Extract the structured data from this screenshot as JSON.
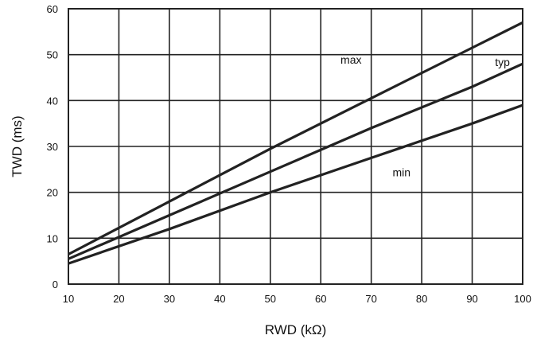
{
  "chart_data": {
    "type": "line",
    "xlabel": "RWD (kΩ)",
    "ylabel": "TWD (ms)",
    "xlim": [
      10,
      100
    ],
    "ylim": [
      0,
      60
    ],
    "x_ticks": [
      10,
      20,
      30,
      40,
      50,
      60,
      70,
      80,
      90,
      100
    ],
    "y_ticks": [
      0,
      10,
      20,
      30,
      40,
      50,
      60
    ],
    "grid": true,
    "legend": "none",
    "line_color": "#222222",
    "series": [
      {
        "name": "max",
        "x": [
          10,
          30,
          50,
          70,
          90,
          100
        ],
        "y": [
          6.5,
          18,
          29.5,
          40.5,
          51.5,
          57
        ]
      },
      {
        "name": "typ",
        "x": [
          10,
          30,
          50,
          70,
          90,
          100
        ],
        "y": [
          5.5,
          15,
          24.5,
          34,
          43,
          48
        ]
      },
      {
        "name": "min",
        "x": [
          10,
          30,
          50,
          70,
          90,
          100
        ],
        "y": [
          4.5,
          12,
          20,
          27.5,
          35,
          39
        ]
      }
    ]
  }
}
